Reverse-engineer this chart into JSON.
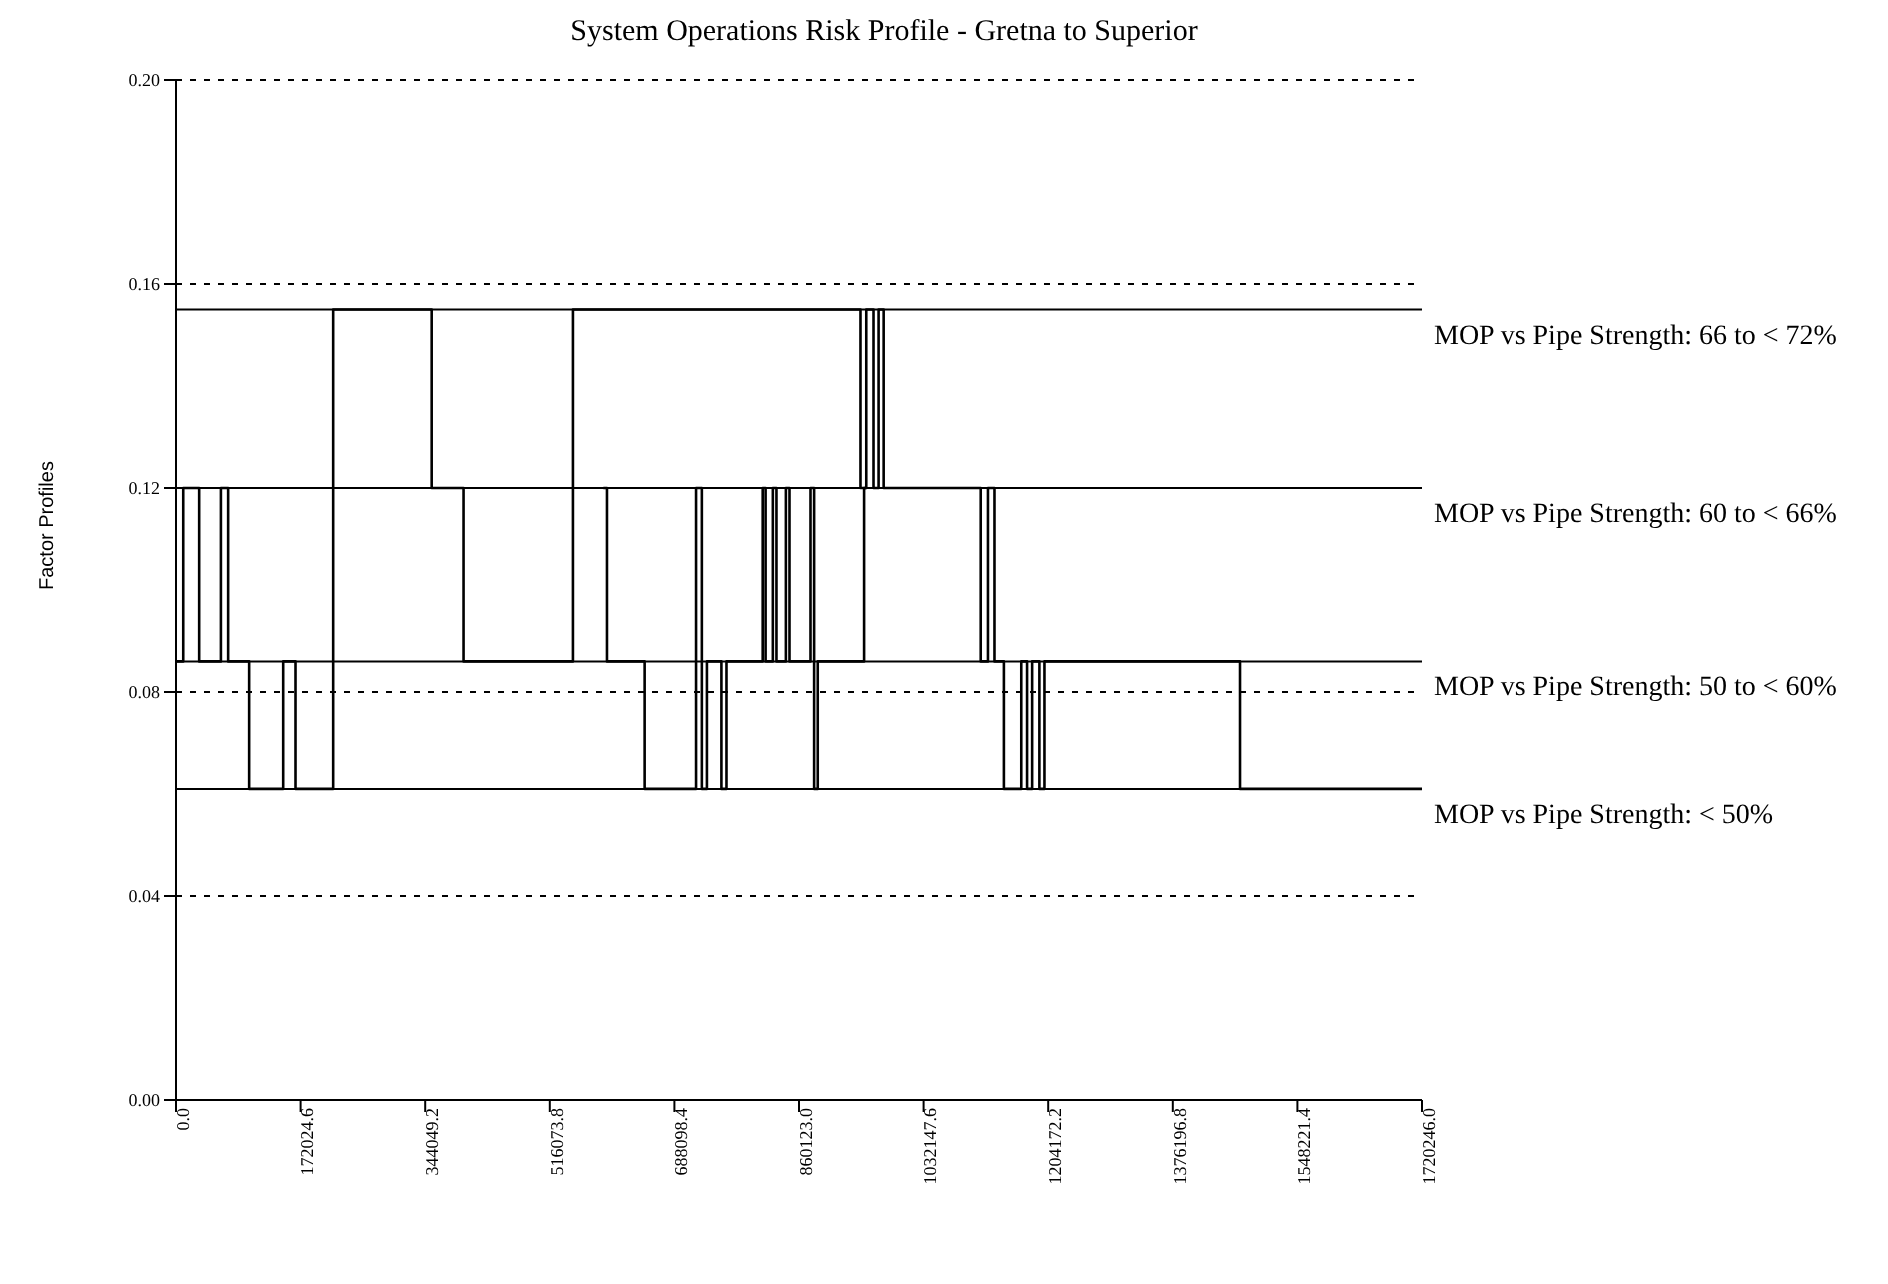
{
  "chart_data": {
    "type": "step",
    "title": "System Operations Risk Profile - Gretna to Superior",
    "ylabel": "Factor Profiles",
    "xlim": [
      0,
      1720246
    ],
    "xticks": [
      {
        "value": 0,
        "label": "0.0"
      },
      {
        "value": 172024.6,
        "label": "172024.6"
      },
      {
        "value": 344049.2,
        "label": "344049.2"
      },
      {
        "value": 516073.8,
        "label": "516073.8"
      },
      {
        "value": 688098.4,
        "label": "688098.4"
      },
      {
        "value": 860123,
        "label": "860123.0"
      },
      {
        "value": 1032147.6,
        "label": "1032147.6"
      },
      {
        "value": 1204172.2,
        "label": "1204172.2"
      },
      {
        "value": 1376196.8,
        "label": "1376196.8"
      },
      {
        "value": 1548221.4,
        "label": "1548221.4"
      },
      {
        "value": 1720246,
        "label": "1720246.0"
      }
    ],
    "ylim": [
      0,
      0.2
    ],
    "yticks": [
      {
        "value": 0,
        "label": "0.00"
      },
      {
        "value": 0.04,
        "label": "0.04"
      },
      {
        "value": 0.08,
        "label": "0.08"
      },
      {
        "value": 0.12,
        "label": "0.12"
      },
      {
        "value": 0.16,
        "label": "0.16"
      },
      {
        "value": 0.2,
        "label": "0.20"
      }
    ],
    "grid": "y",
    "legend": false,
    "marker": "none",
    "line_style": "solid",
    "series": [
      {
        "color": "#000000",
        "x": [
          0,
          10000,
          32000,
          62000,
          72000,
          101000,
          148000,
          165000,
          217000,
          353000,
          397000,
          548000,
          945000,
          953000,
          963000,
          970000,
          977000,
          1111000,
          1121000,
          1130000,
          1143000,
          1167000,
          1175000,
          1182000,
          1192000,
          1199000,
          1469000,
          1720246
        ],
        "values": [
          0.086,
          0.12,
          0.086,
          0.12,
          0.086,
          0.061,
          0.086,
          0.061,
          0.155,
          0.12,
          0.086,
          0.155,
          0.12,
          0.155,
          0.12,
          0.155,
          0.12,
          0.086,
          0.12,
          0.086,
          0.061,
          0.086,
          0.061,
          0.086,
          0.061,
          0.086,
          0.061,
          0.061
        ]
      },
      {
        "color": "#000000",
        "x": [
          590000,
          595000,
          647000,
          718000,
          726000,
          733000,
          753000,
          760000,
          810000,
          814000,
          824000,
          829000,
          842000,
          847000,
          876000,
          881000,
          886000,
          950000,
          953000
        ],
        "values": [
          0.12,
          0.086,
          0.061,
          0.12,
          0.061,
          0.086,
          0.061,
          0.086,
          0.12,
          0.086,
          0.12,
          0.086,
          0.12,
          0.086,
          0.12,
          0.061,
          0.086,
          0.12,
          0.12
        ]
      }
    ],
    "ref_lines": [
      {
        "axis": "y",
        "value": 0.155,
        "color": "#000000",
        "line_style": "solid"
      },
      {
        "axis": "y",
        "value": 0.12,
        "color": "#000000",
        "line_style": "solid"
      },
      {
        "axis": "y",
        "value": 0.086,
        "color": "#000000",
        "line_style": "solid"
      },
      {
        "axis": "y",
        "value": 0.061,
        "color": "#000000",
        "line_style": "solid"
      }
    ],
    "annotations": [
      "MOP vs Pipe Strength: 66 to < 72%",
      "MOP vs Pipe Strength: 60 to < 66%",
      "MOP vs Pipe Strength: 50 to < 60%",
      "MOP vs Pipe Strength: < 50%"
    ]
  }
}
